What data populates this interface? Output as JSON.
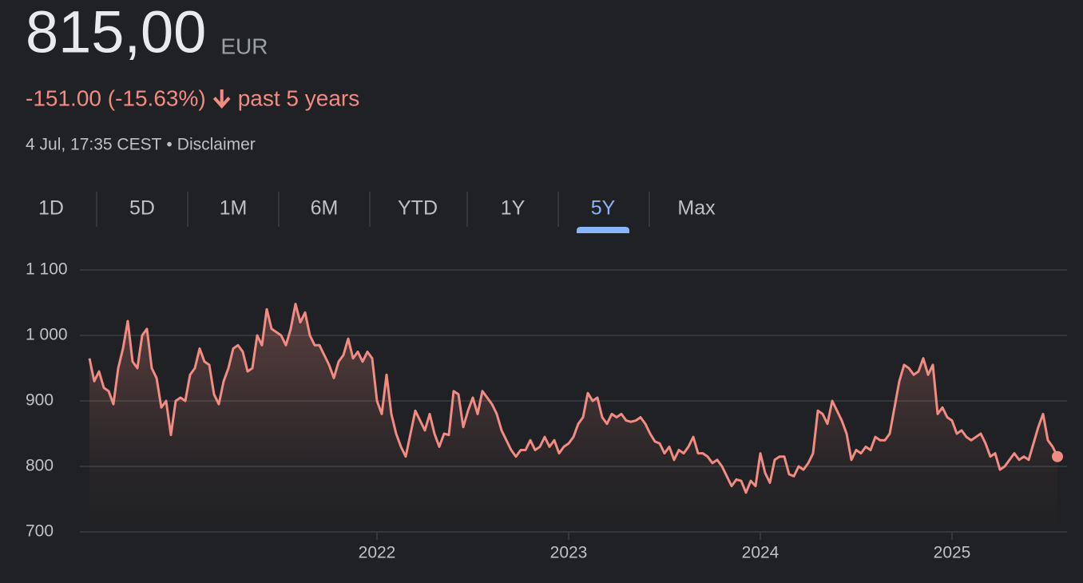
{
  "header": {
    "price": "815,00",
    "currency": "EUR",
    "change": "-151.00 (-15.63%)",
    "period": "past 5 years",
    "timestamp": "4 Jul, 17:35 CEST",
    "separator": "•",
    "disclaimer": "Disclaimer"
  },
  "tabs": {
    "items": [
      "1D",
      "5D",
      "1M",
      "6M",
      "YTD",
      "1Y",
      "5Y",
      "Max"
    ],
    "selected": "5Y"
  },
  "chart_data": {
    "type": "line",
    "x": [
      2020.5,
      2020.525,
      2020.55,
      2020.575,
      2020.6,
      2020.625,
      2020.65,
      2020.675,
      2020.7,
      2020.725,
      2020.75,
      2020.775,
      2020.8,
      2020.825,
      2020.85,
      2020.875,
      2020.9,
      2020.925,
      2020.95,
      2020.975,
      2021,
      2021.025,
      2021.05,
      2021.075,
      2021.1,
      2021.125,
      2021.15,
      2021.175,
      2021.2,
      2021.225,
      2021.25,
      2021.275,
      2021.3,
      2021.325,
      2021.35,
      2021.375,
      2021.4,
      2021.425,
      2021.45,
      2021.475,
      2021.5,
      2021.525,
      2021.55,
      2021.575,
      2021.6,
      2021.625,
      2021.65,
      2021.675,
      2021.7,
      2021.725,
      2021.75,
      2021.775,
      2021.8,
      2021.825,
      2021.85,
      2021.875,
      2021.9,
      2021.925,
      2021.95,
      2021.975,
      2022,
      2022.025,
      2022.05,
      2022.075,
      2022.1,
      2022.125,
      2022.15,
      2022.175,
      2022.2,
      2022.225,
      2022.25,
      2022.275,
      2022.3,
      2022.325,
      2022.35,
      2022.375,
      2022.4,
      2022.425,
      2022.45,
      2022.475,
      2022.5,
      2022.525,
      2022.55,
      2022.575,
      2022.6,
      2022.625,
      2022.65,
      2022.675,
      2022.7,
      2022.725,
      2022.75,
      2022.775,
      2022.8,
      2022.825,
      2022.85,
      2022.875,
      2022.9,
      2022.925,
      2022.95,
      2022.975,
      2023,
      2023.025,
      2023.05,
      2023.075,
      2023.1,
      2023.125,
      2023.15,
      2023.175,
      2023.2,
      2023.225,
      2023.25,
      2023.275,
      2023.3,
      2023.325,
      2023.35,
      2023.375,
      2023.4,
      2023.425,
      2023.45,
      2023.475,
      2023.5,
      2023.525,
      2023.55,
      2023.575,
      2023.6,
      2023.625,
      2023.65,
      2023.675,
      2023.7,
      2023.725,
      2023.75,
      2023.775,
      2023.8,
      2023.825,
      2023.85,
      2023.875,
      2023.9,
      2023.925,
      2023.95,
      2023.975,
      2024,
      2024.025,
      2024.05,
      2024.075,
      2024.1,
      2024.125,
      2024.15,
      2024.175,
      2024.2,
      2024.225,
      2024.25,
      2024.275,
      2024.3,
      2024.325,
      2024.35,
      2024.375,
      2024.4,
      2024.425,
      2024.45,
      2024.475,
      2024.5,
      2024.525,
      2024.55,
      2024.575,
      2024.6,
      2024.625,
      2024.65,
      2024.675,
      2024.7,
      2024.725,
      2024.75,
      2024.775,
      2024.8,
      2024.825,
      2024.85,
      2024.875,
      2024.9,
      2024.925,
      2024.95,
      2024.975,
      2025,
      2025.025,
      2025.05,
      2025.075,
      2025.1,
      2025.125,
      2025.15,
      2025.175,
      2025.2,
      2025.225,
      2025.25,
      2025.275,
      2025.3,
      2025.325,
      2025.35,
      2025.375,
      2025.4,
      2025.425,
      2025.45,
      2025.475,
      2025.5,
      2025.525,
      2025.55
    ],
    "series": [
      {
        "color": "#f28b82",
        "values": [
          965,
          930,
          945,
          920,
          915,
          895,
          950,
          980,
          1022,
          960,
          950,
          1000,
          1010,
          950,
          935,
          890,
          900,
          848,
          900,
          905,
          900,
          940,
          950,
          980,
          960,
          955,
          910,
          895,
          930,
          950,
          980,
          985,
          975,
          945,
          950,
          1000,
          985,
          1040,
          1010,
          1005,
          1000,
          985,
          1010,
          1048,
          1020,
          1035,
          1000,
          985,
          985,
          970,
          955,
          935,
          960,
          970,
          995,
          965,
          975,
          960,
          975,
          965,
          900,
          880,
          940,
          880,
          850,
          830,
          815,
          850,
          885,
          870,
          855,
          880,
          850,
          830,
          850,
          848,
          915,
          910,
          860,
          885,
          905,
          880,
          915,
          905,
          895,
          880,
          855,
          840,
          825,
          815,
          825,
          825,
          840,
          825,
          830,
          845,
          830,
          840,
          820,
          830,
          835,
          845,
          865,
          875,
          912,
          900,
          905,
          875,
          865,
          880,
          875,
          880,
          870,
          868,
          870,
          875,
          865,
          850,
          838,
          835,
          820,
          830,
          810,
          825,
          820,
          830,
          845,
          820,
          820,
          815,
          805,
          810,
          800,
          785,
          770,
          780,
          778,
          760,
          778,
          770,
          820,
          790,
          775,
          810,
          815,
          815,
          788,
          785,
          800,
          795,
          805,
          820,
          885,
          880,
          865,
          900,
          885,
          870,
          850,
          810,
          825,
          820,
          830,
          825,
          845,
          840,
          840,
          850,
          890,
          930,
          955,
          950,
          940,
          945,
          965,
          940,
          955,
          880,
          890,
          875,
          870,
          850,
          855,
          845,
          840,
          845,
          850,
          835,
          815,
          820,
          795,
          800,
          810,
          820,
          810,
          815,
          810,
          835,
          860,
          880,
          840,
          830,
          815
        ]
      }
    ],
    "xlim": [
      2020.45,
      2025.6
    ],
    "xticks": [
      2022,
      2023,
      2024,
      2025
    ],
    "ylim": [
      700,
      1100
    ],
    "yticks": [
      700,
      800,
      900,
      {
        "value": 1000,
        "label": "1 000"
      },
      {
        "value": 1100,
        "label": "1 100"
      }
    ],
    "grid": true
  }
}
